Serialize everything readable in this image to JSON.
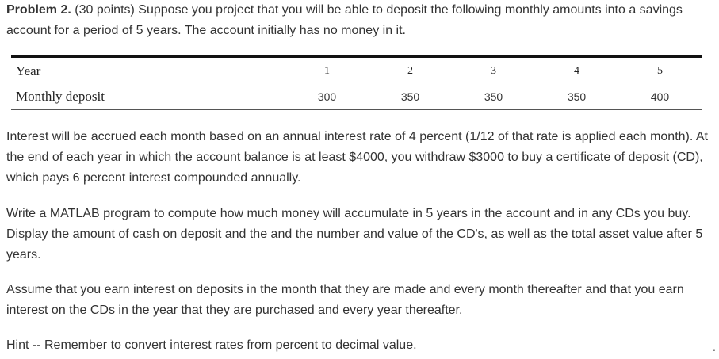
{
  "problem": {
    "heading": "Problem 2.",
    "intro": " (30 points) Suppose you project that you will be able to deposit the following monthly amounts into a savings account for a period of 5 years. The account initially has no money in it."
  },
  "table": {
    "row_labels": [
      "Year",
      "Monthly deposit"
    ],
    "years": [
      "1",
      "2",
      "3",
      "4",
      "5"
    ],
    "deposits": [
      "300",
      "350",
      "350",
      "350",
      "400"
    ]
  },
  "paragraphs": {
    "interest": "Interest will be accrued each month based on an annual interest rate of 4 percent (1/12 of that rate is applied each month). At the end of each year in which the account balance is at least $4000, you withdraw $3000 to buy a certificate of deposit (CD), which pays 6 percent interest compounded annually.",
    "matlab": "Write a MATLAB program to compute how much money will accumulate in 5 years in the account and in any CDs you buy. Display the amount of cash on deposit and the and the number and value of the CD's, as well as the total asset value after 5 years.",
    "assume": "Assume that you earn interest on deposits in the month that they are made and every month thereafter and that you earn interest on the CDs in the year that they are purchased and every year thereafter.",
    "hint": "Hint -- Remember to convert interest rates from percent to decimal value."
  },
  "stray_mark": "."
}
